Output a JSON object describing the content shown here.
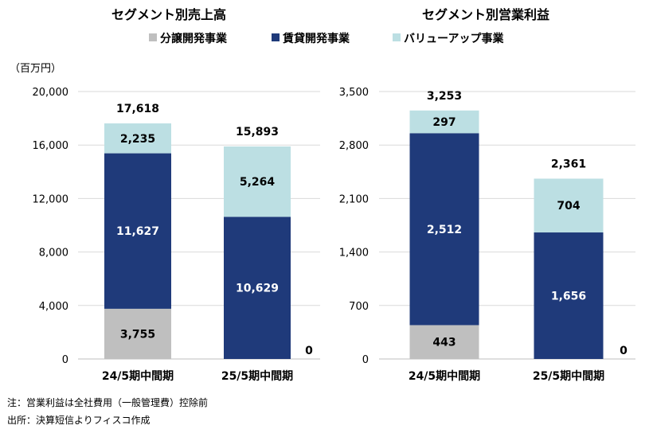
{
  "unit_label": "（百万円）",
  "legend": [
    {
      "name": "分譲開発事業",
      "color": "#BFBFBF"
    },
    {
      "name": "賃貸開発事業",
      "color": "#1F3A7A"
    },
    {
      "name": "バリューアップ事業",
      "color": "#BCDFE3"
    }
  ],
  "notes": [
    "注：営業利益は全社費用（一般管理費）控除前",
    "出所：決算短信よりフィスコ作成"
  ],
  "chart_data": [
    {
      "type": "bar",
      "stacked": true,
      "title": "セグメント別売上高",
      "categories": [
        "24/5期中間期",
        "25/5期中間期"
      ],
      "series": [
        {
          "name": "分譲開発事業",
          "values": [
            3755,
            0
          ],
          "labels": [
            "3,755",
            "0"
          ]
        },
        {
          "name": "賃貸開発事業",
          "values": [
            11627,
            10629
          ],
          "labels": [
            "11,627",
            "10,629"
          ]
        },
        {
          "name": "バリューアップ事業",
          "values": [
            2235,
            5264
          ],
          "labels": [
            "2,235",
            "5,264"
          ]
        }
      ],
      "totals": [
        "17,618",
        "15,893"
      ],
      "ylim": [
        0,
        20000
      ],
      "yticks": [
        "0",
        "4,000",
        "8,000",
        "12,000",
        "16,000",
        "20,000"
      ],
      "grid": true
    },
    {
      "type": "bar",
      "stacked": true,
      "title": "セグメント別営業利益",
      "categories": [
        "24/5期中間期",
        "25/5期中間期"
      ],
      "series": [
        {
          "name": "分譲開発事業",
          "values": [
            443,
            0
          ],
          "labels": [
            "443",
            "0"
          ]
        },
        {
          "name": "賃貸開発事業",
          "values": [
            2512,
            1656
          ],
          "labels": [
            "2,512",
            "1,656"
          ]
        },
        {
          "name": "バリューアップ事業",
          "values": [
            297,
            704
          ],
          "labels": [
            "297",
            "704"
          ]
        }
      ],
      "totals": [
        "3,253",
        "2,361"
      ],
      "ylim": [
        0,
        3500
      ],
      "yticks": [
        "0",
        "700",
        "1,400",
        "2,100",
        "2,800",
        "3,500"
      ],
      "grid": true
    }
  ]
}
